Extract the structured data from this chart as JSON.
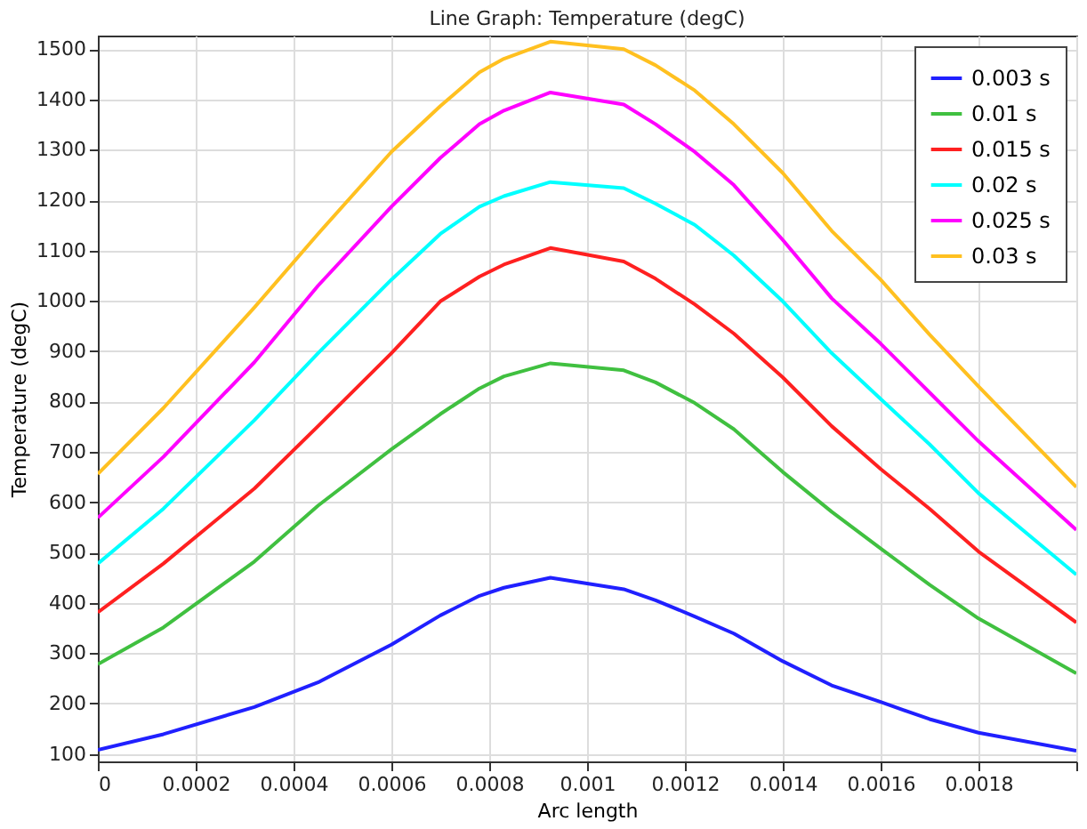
{
  "chart_data": {
    "type": "line",
    "title": "Line Graph: Temperature (degC)",
    "xlabel": "Arc length",
    "ylabel": "Temperature (degC)",
    "x": [
      0,
      0.000134,
      0.00032,
      0.00045,
      0.0006,
      0.0007,
      0.00078,
      0.00083,
      0.000925,
      0.001075,
      0.00114,
      0.00122,
      0.0013,
      0.0014,
      0.0015,
      0.0016,
      0.0017,
      0.0018,
      0.002
    ],
    "series": [
      {
        "name": "0.003 s",
        "color": "#2020ff",
        "values": [
          108,
          139,
          193,
          242,
          317,
          375,
          414,
          430,
          450,
          427,
          405,
          373,
          339,
          284,
          236,
          203,
          169,
          142,
          106
        ]
      },
      {
        "name": "0.01 s",
        "color": "#40c040",
        "values": [
          278,
          351,
          482,
          593,
          705,
          775,
          826,
          850,
          876,
          862,
          838,
          797,
          745,
          660,
          581,
          508,
          436,
          369,
          260
        ]
      },
      {
        "name": "0.015 s",
        "color": "#ff2020",
        "values": [
          381,
          478,
          627,
          751,
          896,
          999,
          1048,
          1072,
          1105,
          1078,
          1044,
          993,
          935,
          848,
          751,
          666,
          587,
          502,
          361
        ]
      },
      {
        "name": "0.02 s",
        "color": "#00ffff",
        "values": [
          478,
          587,
          763,
          896,
          1042,
          1133,
          1187,
          1208,
          1236,
          1224,
          1193,
          1151,
          1090,
          999,
          896,
          805,
          715,
          618,
          456
        ]
      },
      {
        "name": "0.025 s",
        "color": "#ff00ff",
        "values": [
          569,
          690,
          878,
          1030,
          1187,
          1284,
          1351,
          1378,
          1414,
          1390,
          1351,
          1296,
          1230,
          1121,
          1005,
          915,
          818,
          721,
          545
        ]
      },
      {
        "name": "0.03 s",
        "color": "#ffc020",
        "values": [
          656,
          787,
          987,
          1133,
          1296,
          1387,
          1454,
          1481,
          1515,
          1500,
          1468,
          1418,
          1351,
          1254,
          1139,
          1042,
          933,
          830,
          630
        ]
      }
    ],
    "xlim": [
      0,
      0.002
    ],
    "xticks": [
      0,
      0.0002,
      0.0004,
      0.0006,
      0.0008,
      0.001,
      0.0012,
      0.0014,
      0.0016,
      0.0018,
      {
        "value": 0.002,
        "label": null
      }
    ],
    "ylim": [
      85,
      1527
    ],
    "yticks": [
      100,
      200,
      300,
      400,
      500,
      600,
      700,
      800,
      900,
      1000,
      1100,
      1200,
      1300,
      1400,
      1500
    ],
    "grid": true,
    "legend": "top right",
    "line_style": "solid",
    "marker": "none"
  }
}
